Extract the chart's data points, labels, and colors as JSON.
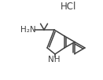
{
  "bg_color": "#ffffff",
  "line_color": "#404040",
  "text_color": "#404040",
  "figsize": [
    1.31,
    1.02
  ],
  "dpi": 100,
  "hcl_text": "HCl",
  "h2n_text": "H₂N",
  "nh_text": "NH",
  "lw": 1.1,
  "fs_label": 7.5,
  "fs_hcl": 8.5,
  "xlim": [
    0,
    131
  ],
  "ylim": [
    0,
    102
  ]
}
